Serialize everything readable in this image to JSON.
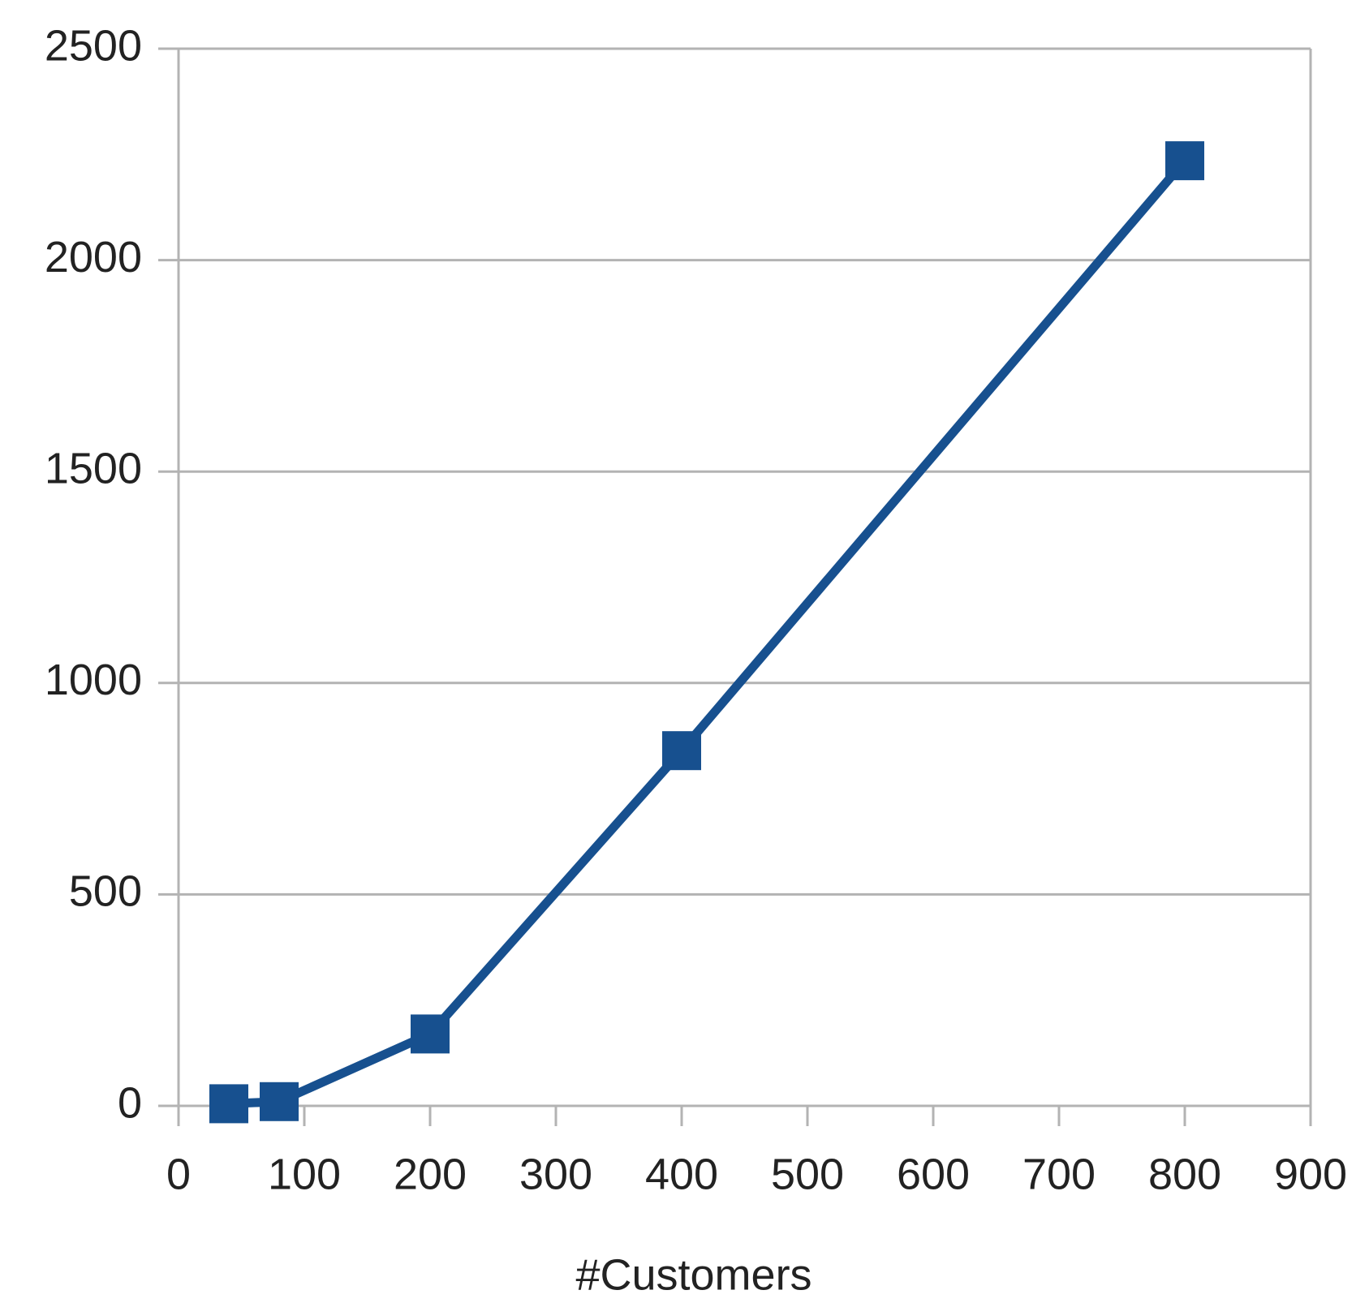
{
  "chart_data": {
    "type": "line",
    "x_label": "#Customers",
    "x": [
      40,
      80,
      200,
      400,
      800
    ],
    "series": [
      {
        "color": "#17508f",
        "values": [
          5,
          10,
          170,
          840,
          2235
        ]
      }
    ],
    "xlim": [
      0,
      900
    ],
    "xticks": [
      0,
      100,
      200,
      300,
      400,
      500,
      600,
      700,
      800,
      900
    ],
    "ylim": [
      0,
      2500
    ],
    "yticks": [
      0,
      500,
      1000,
      1500,
      2000,
      2500
    ],
    "grid": true,
    "marker": "square"
  }
}
